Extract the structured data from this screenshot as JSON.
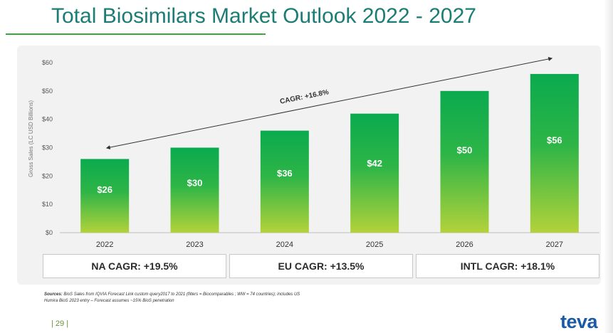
{
  "title": "Total Biosimilars Market Outlook 2022 - 2027",
  "chart_data": {
    "type": "bar",
    "categories": [
      "2022",
      "2023",
      "2024",
      "2025",
      "2026",
      "2027"
    ],
    "values": [
      26,
      30,
      36,
      42,
      50,
      56
    ],
    "data_labels": [
      "$26",
      "$30",
      "$36",
      "$42",
      "$50",
      "$56"
    ],
    "ylabel": "Gross Sales (LC USD Billions)",
    "ylim": [
      0,
      60
    ],
    "yticks": [
      0,
      10,
      20,
      30,
      40,
      50,
      60
    ],
    "ytick_labels": [
      "$0",
      "$10",
      "$20",
      "$30",
      "$40",
      "$50",
      "$60"
    ],
    "annotation": "CAGR: +16.8%",
    "colors": {
      "bar_top": "#0aaa4e",
      "bar_bottom": "#b3d23a"
    }
  },
  "cagr_boxes": [
    "NA CAGR: +19.5%",
    "EU CAGR: +13.5%",
    "INTL CAGR: +18.1%"
  ],
  "sources": {
    "label": "Sources:",
    "text": "BioS Sales from IQVIA Forecast Link custom query2017 to 2021 (filters = Biocomparables ; WW = 74 countries); includes US Humira BioS 2023 entry – Forecast assumes ~15% BioS penetration"
  },
  "page_number": "| 29 |",
  "logo_text": "teva"
}
